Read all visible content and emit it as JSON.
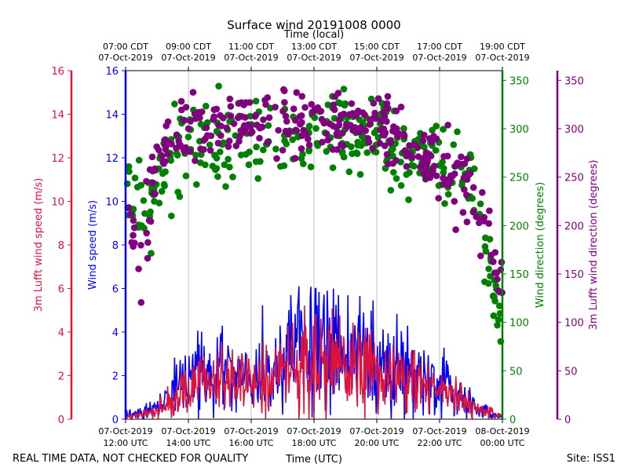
{
  "chart_data": {
    "type": "scatter",
    "title": "Surface wind 20191008 0000",
    "top_axis_label": "Time (local)",
    "bottom_axis_label": "Time (UTC)",
    "footer_left": "REAL TIME DATA, NOT CHECKED FOR QUALITY",
    "footer_right": "Site: ISS1",
    "x_range_hours_utc": [
      12,
      24
    ],
    "bottom_ticks": [
      {
        "h": 12,
        "l1": "07-Oct-2019",
        "l2": "12:00 UTC"
      },
      {
        "h": 14,
        "l1": "07-Oct-2019",
        "l2": "14:00 UTC"
      },
      {
        "h": 16,
        "l1": "07-Oct-2019",
        "l2": "16:00 UTC"
      },
      {
        "h": 18,
        "l1": "07-Oct-2019",
        "l2": "18:00 UTC"
      },
      {
        "h": 20,
        "l1": "07-Oct-2019",
        "l2": "20:00 UTC"
      },
      {
        "h": 22,
        "l1": "07-Oct-2019",
        "l2": "22:00 UTC"
      },
      {
        "h": 24,
        "l1": "08-Oct-2019",
        "l2": "00:00 UTC"
      }
    ],
    "top_ticks": [
      {
        "h": 12,
        "l1": "07:00 CDT",
        "l2": "07-Oct-2019"
      },
      {
        "h": 14,
        "l1": "09:00 CDT",
        "l2": "07-Oct-2019"
      },
      {
        "h": 16,
        "l1": "11:00 CDT",
        "l2": "07-Oct-2019"
      },
      {
        "h": 18,
        "l1": "13:00 CDT",
        "l2": "07-Oct-2019"
      },
      {
        "h": 20,
        "l1": "15:00 CDT",
        "l2": "07-Oct-2019"
      },
      {
        "h": 22,
        "l1": "17:00 CDT",
        "l2": "07-Oct-2019"
      },
      {
        "h": 24,
        "l1": "19:00 CDT",
        "l2": "07-Oct-2019"
      }
    ],
    "axes": {
      "lufft_speed": {
        "label": "3m Lufft wind speed (m/s)",
        "range": [
          0,
          16
        ],
        "ticks": [
          0,
          2,
          4,
          6,
          8,
          10,
          12,
          14,
          16
        ],
        "color": "#dc143c"
      },
      "wind_speed": {
        "label": "Wind speed (m/s)",
        "range": [
          0,
          16
        ],
        "ticks": [
          0,
          2,
          4,
          6,
          8,
          10,
          12,
          14,
          16
        ],
        "color": "#0000ff"
      },
      "wind_direction": {
        "label": "Wind direction (degrees)",
        "range": [
          0,
          360
        ],
        "ticks": [
          0,
          50,
          100,
          150,
          200,
          250,
          300,
          350
        ],
        "color": "#008000"
      },
      "lufft_direction": {
        "label": "3m Lufft wind direction (degrees)",
        "range": [
          0,
          360
        ],
        "ticks": [
          0,
          50,
          100,
          150,
          200,
          250,
          300,
          350
        ],
        "color": "#800080"
      }
    },
    "series": [
      {
        "name": "Wind speed",
        "kind": "line",
        "axis": "wind_speed",
        "color": "#0000ff",
        "profile_hours": [
          12.0,
          12.5,
          13.0,
          13.5,
          14.0,
          15.0,
          16.0,
          17.0,
          18.0,
          19.0,
          20.0,
          21.0,
          21.5,
          22.0,
          22.5,
          23.0,
          23.5,
          24.0
        ],
        "profile_values": [
          0.2,
          0.3,
          0.5,
          1.2,
          1.8,
          2.2,
          2.0,
          2.8,
          3.3,
          3.0,
          2.8,
          2.1,
          1.8,
          1.6,
          1.2,
          0.7,
          0.3,
          0.1
        ],
        "peak": {
          "h": 18.05,
          "v": 6.0
        }
      },
      {
        "name": "3m Lufft wind speed",
        "kind": "line",
        "axis": "lufft_speed",
        "color": "#dc143c",
        "profile_hours": [
          12.0,
          12.5,
          13.0,
          13.5,
          14.0,
          15.0,
          16.0,
          17.0,
          18.0,
          19.0,
          20.0,
          21.0,
          21.5,
          22.0,
          22.5,
          23.0,
          23.5,
          24.0
        ],
        "profile_values": [
          0.1,
          0.2,
          0.4,
          0.9,
          1.5,
          1.8,
          1.7,
          2.3,
          2.8,
          2.5,
          2.3,
          1.8,
          1.5,
          1.3,
          1.0,
          0.6,
          0.3,
          0.1
        ],
        "peak": {
          "h": 18.05,
          "v": 4.8
        }
      },
      {
        "name": "Wind direction",
        "kind": "scatter",
        "axis": "wind_direction",
        "color": "#008000",
        "profile_hours": [
          12.0,
          12.5,
          13.0,
          14.0,
          16.0,
          18.0,
          20.0,
          21.0,
          22.0,
          23.0,
          23.5,
          24.0
        ],
        "profile_values": [
          235,
          210,
          240,
          285,
          295,
          300,
          295,
          270,
          260,
          250,
          170,
          90
        ],
        "spread_deg": 20
      },
      {
        "name": "3m Lufft wind direction",
        "kind": "scatter",
        "axis": "lufft_direction",
        "color": "#800080",
        "profile_hours": [
          12.0,
          12.5,
          13.0,
          14.0,
          16.0,
          18.0,
          20.0,
          21.0,
          22.0,
          23.0,
          23.5,
          24.0
        ],
        "profile_values": [
          230,
          150,
          270,
          300,
          310,
          305,
          305,
          285,
          255,
          240,
          200,
          130
        ],
        "spread_deg": 18
      }
    ]
  }
}
